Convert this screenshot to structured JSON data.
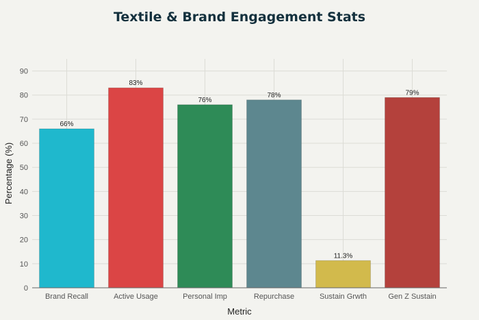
{
  "chart_data": {
    "type": "bar",
    "title": "Textile & Brand Engagement Stats",
    "xlabel": "Metric",
    "ylabel": "Percentage (%)",
    "categories": [
      "Brand Recall",
      "Active Usage",
      "Personal Imp",
      "Repurchase",
      "Sustain Grwth",
      "Gen Z Sustain"
    ],
    "values": [
      66,
      83,
      76,
      78,
      11.3,
      79
    ],
    "data_labels": [
      "66%",
      "83%",
      "76%",
      "78%",
      "11.3%",
      "79%"
    ],
    "colors": [
      "#1fb8cd",
      "#db4545",
      "#2e8b57",
      "#5d878f",
      "#d2ba4c",
      "#b4413c"
    ],
    "ylim": [
      0,
      95
    ],
    "yticks": [
      0,
      10,
      20,
      30,
      40,
      50,
      60,
      70,
      80,
      90
    ],
    "grid": true
  }
}
